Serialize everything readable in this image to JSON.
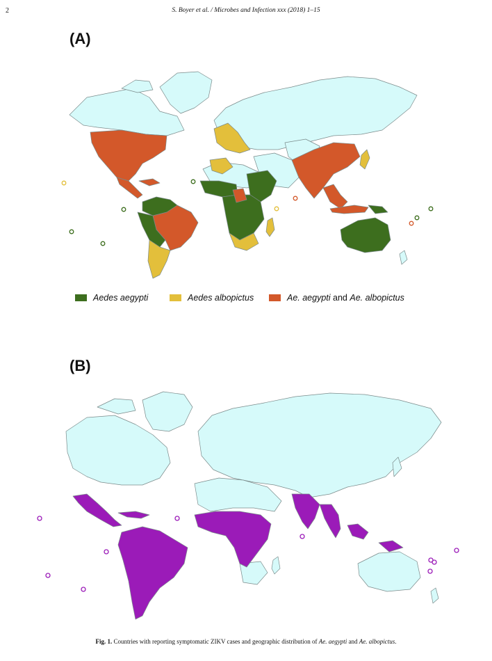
{
  "header": {
    "page_number": "2",
    "running_head": "S. Boyer et al. / Microbes and Infection xxx (2018) 1–15"
  },
  "panel_a": {
    "label": "(A)",
    "legend": [
      {
        "label": "Aedes aegypti",
        "color": "#3d6e1e"
      },
      {
        "label": "Aedes albopictus",
        "color": "#e3bf3b"
      },
      {
        "label_prefix": "Ae. aegypti",
        "label_mid": " and ",
        "label_suffix": "Ae. albopictus",
        "color": "#d3582a"
      }
    ]
  },
  "panel_b": {
    "label": "(B)"
  },
  "colors": {
    "land_base": "#d6fafa",
    "outline": "#7a8a8a",
    "zika": "#9b1bb8",
    "aegypti": "#3d6e1e",
    "albopictus": "#e3bf3b",
    "both": "#d3582a"
  },
  "caption": {
    "fig_label": "Fig. 1.",
    "text_a": " Countries with reporting symptomatic ZIKV cases and geographic distribution of ",
    "species_a": "Ae. aegypti",
    "text_b": " and ",
    "species_b": "Ae. albopictus",
    "text_end": "."
  }
}
